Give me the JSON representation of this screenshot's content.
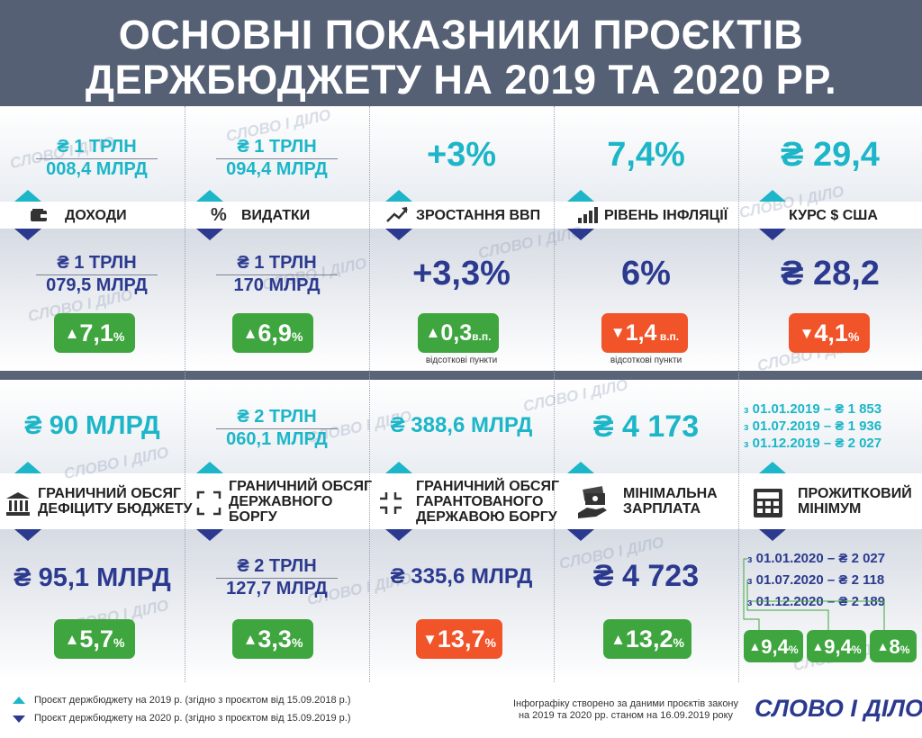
{
  "title_line1": "ОСНОВНІ ПОКАЗНИКИ ПРОЄКТІВ",
  "title_line2": "ДЕРЖБЮДЖЕТУ НА 2019 ТА 2020 РР.",
  "watermark": "СЛОВО І ДІЛО",
  "colors": {
    "cyan_2019": "#1cb6c8",
    "navy_2020": "#2b3a8f",
    "increase": "#3fa63f",
    "decrease": "#f2542a"
  },
  "row1": [
    {
      "icon": "wallet-icon",
      "label": "ДОХОДИ",
      "v2019_top": "₴ 1 ТРЛН",
      "v2019_bot": "008,4 МЛРД",
      "v2020_top": "₴ 1 ТРЛН",
      "v2020_bot": "079,5 МЛРД",
      "change": "7,1",
      "unit": "%",
      "direction": "up",
      "note": ""
    },
    {
      "icon": "percent-icon",
      "label": "ВИДАТКИ",
      "v2019_top": "₴ 1 ТРЛН",
      "v2019_bot": "094,4 МЛРД",
      "v2020_top": "₴ 1 ТРЛН",
      "v2020_bot": "170 МЛРД",
      "change": "6,9",
      "unit": "%",
      "direction": "up",
      "note": ""
    },
    {
      "icon": "trend-up-icon",
      "label": "ЗРОСТАННЯ ВВП",
      "v2019": "+3%",
      "v2020": "+3,3%",
      "change": "0,3",
      "unit": "в.п.",
      "direction": "up",
      "note": "відсоткові пункти"
    },
    {
      "icon": "bar-chart-icon",
      "label": "РІВЕНЬ ІНФЛЯЦІЇ",
      "v2019": "7,4%",
      "v2020": "6%",
      "change": "1,4",
      "unit": "в.п.",
      "direction": "down",
      "note": "відсоткові пункти"
    },
    {
      "icon": "",
      "label": "КУРС $ США",
      "v2019": "₴ 29,4",
      "v2020": "₴ 28,2",
      "change": "4,1",
      "unit": "%",
      "direction": "down",
      "note": ""
    }
  ],
  "row2": [
    {
      "icon": "bank-icon",
      "label1": "ГРАНИЧНИЙ ОБСЯГ",
      "label2": "ДЕФІЦИТУ БЮДЖЕТУ",
      "label3": "",
      "v2019": "₴ 90 МЛРД",
      "v2020": "₴ 95,1 МЛРД",
      "change": "5,7",
      "unit": "%",
      "direction": "up"
    },
    {
      "icon": "expand-icon",
      "label1": "ГРАНИЧНИЙ ОБСЯГ",
      "label2": "ДЕРЖАВНОГО",
      "label3": "БОРГУ",
      "v2019_top": "₴ 2 ТРЛН",
      "v2019_bot": "060,1 МЛРД",
      "v2020_top": "₴ 2 ТРЛН",
      "v2020_bot": "127,7 МЛРД",
      "change": "3,3",
      "unit": "%",
      "direction": "up"
    },
    {
      "icon": "shrink-icon",
      "label1": "ГРАНИЧНИЙ ОБСЯГ",
      "label2": "ГАРАНТОВАНОГО",
      "label3": "ДЕРЖАВОЮ БОРГУ",
      "v2019": "₴ 388,6 МЛРД",
      "v2020": "₴ 335,6 МЛРД",
      "change": "13,7",
      "unit": "%",
      "direction": "down"
    },
    {
      "icon": "money-hand-icon",
      "label1": "МІНІМАЛЬНА",
      "label2": "ЗАРПЛАТА",
      "label3": "",
      "v2019": "₴ 4 173",
      "v2020": "₴ 4 723",
      "change": "13,2",
      "unit": "%",
      "direction": "up"
    },
    {
      "icon": "calculator-icon",
      "label1": "ПРОЖИТКОВИЙ",
      "label2": "МІНІМУМ",
      "label3": "",
      "steps2019": [
        {
          "from": "з",
          "text": "01.01.2019 – ₴ 1 853"
        },
        {
          "from": "з",
          "text": "01.07.2019 – ₴ 1 936"
        },
        {
          "from": "з",
          "text": "01.12.2019 – ₴ 2 027"
        }
      ],
      "steps2020": [
        {
          "from": "з",
          "text": "01.01.2020 – ₴ 2 027"
        },
        {
          "from": "з",
          "text": "01.07.2020 – ₴ 2 118"
        },
        {
          "from": "з",
          "text": "01.12.2020 – ₴ 2 189"
        }
      ],
      "changes": [
        {
          "value": "9,4",
          "unit": "%"
        },
        {
          "value": "9,4",
          "unit": "%"
        },
        {
          "value": "8",
          "unit": "%"
        }
      ]
    }
  ],
  "legend": {
    "item2019": "Проєкт держбюджету на 2019 р. (згідно з проєктом від 15.09.2018 р.)",
    "item2020": "Проєкт держбюджету на 2020 р. (згідно з проєктом від 15.09.2019 р.)"
  },
  "source_line1": "Інфографіку створено за даними проєктів закону",
  "source_line2": "на 2019 та 2020 рр. станом на 16.09.2019 року",
  "logo": "СЛОВО І ДІЛО",
  "arrow_up": "▲",
  "arrow_down": "▼"
}
